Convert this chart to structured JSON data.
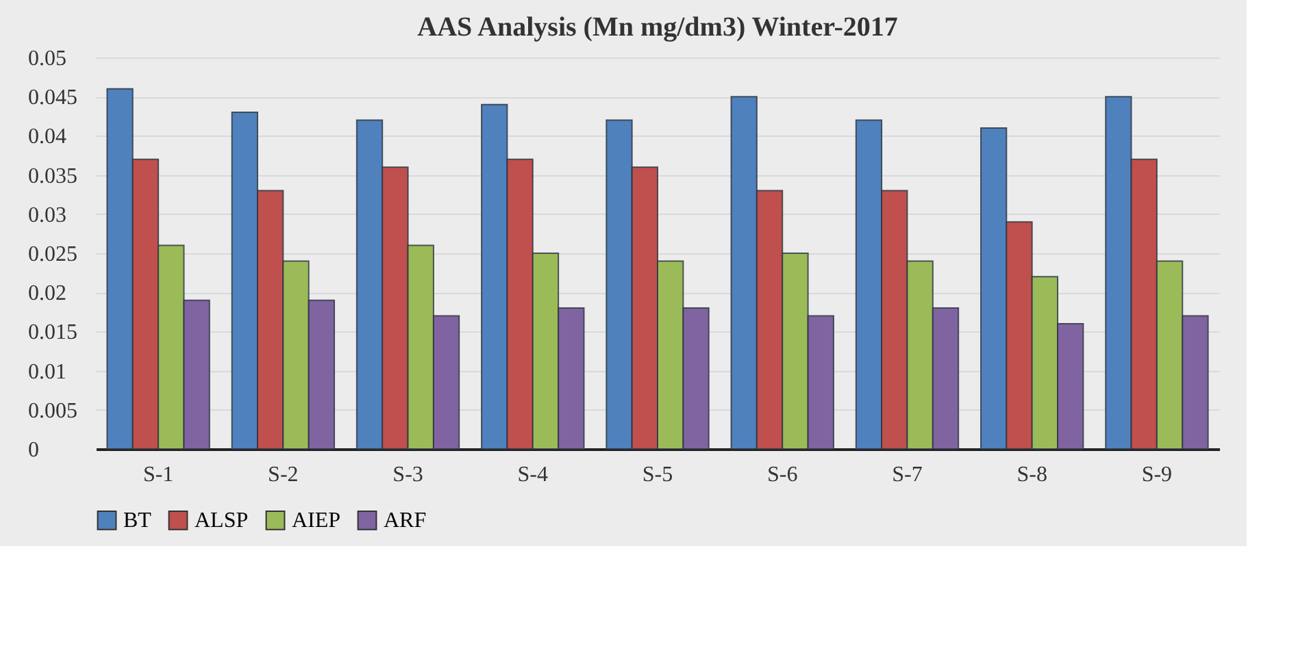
{
  "chart_data": {
    "type": "bar",
    "title": "AAS Analysis (Mn mg/dm3) Winter-2017",
    "categories": [
      "S-1",
      "S-2",
      "S-3",
      "S-4",
      "S-5",
      "S-6",
      "S-7",
      "S-8",
      "S-9"
    ],
    "series": [
      {
        "name": "BT",
        "color": "#4f81bd",
        "values": [
          0.046,
          0.043,
          0.042,
          0.044,
          0.042,
          0.045,
          0.042,
          0.041,
          0.045
        ]
      },
      {
        "name": "ALSP",
        "color": "#c0504d",
        "values": [
          0.037,
          0.033,
          0.036,
          0.037,
          0.036,
          0.033,
          0.033,
          0.029,
          0.037
        ]
      },
      {
        "name": "AIEP",
        "color": "#9bbb59",
        "values": [
          0.026,
          0.024,
          0.026,
          0.025,
          0.024,
          0.025,
          0.024,
          0.022,
          0.024
        ]
      },
      {
        "name": "ARF",
        "color": "#8064a2",
        "values": [
          0.019,
          0.019,
          0.017,
          0.018,
          0.018,
          0.017,
          0.018,
          0.016,
          0.017
        ]
      }
    ],
    "ylim": [
      0,
      0.05
    ],
    "yticks": [
      0,
      0.005,
      0.01,
      0.015,
      0.02,
      0.025,
      0.03,
      0.035,
      0.04,
      0.045,
      0.05
    ],
    "grid": "y",
    "legend": "bottom"
  }
}
